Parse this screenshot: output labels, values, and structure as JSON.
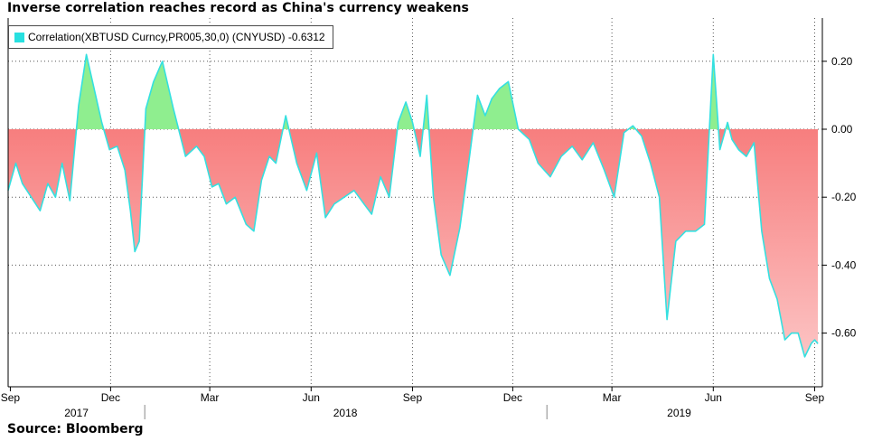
{
  "title": "Inverse correlation reaches record as China's currency weakens",
  "source": "Source: Bloomberg",
  "legend": {
    "label": "Correlation(XBTUSD Curncy,PR005,30,0) (CNYUSD) -0.6312",
    "swatch_color": "#27e0e0"
  },
  "colors": {
    "line": "#34e0e0",
    "positive_fill": "#8fee8f",
    "negative_fill_top": "#f77e7e",
    "negative_fill_bottom": "#fcc4c4",
    "grid": "#555555"
  },
  "chart_data": {
    "type": "area",
    "title": "Inverse correlation reaches record as China's currency weakens",
    "xlabel": "",
    "ylabel": "",
    "ylim": [
      -0.75,
      0.31
    ],
    "yticks": [
      0.2,
      0.0,
      -0.2,
      -0.4,
      -0.6
    ],
    "ytick_labels": [
      "0.20",
      "0.00",
      "-0.20",
      "-0.40",
      "-0.60"
    ],
    "x_month_ticks": [
      {
        "date": "2017-09-01",
        "label": "Sep"
      },
      {
        "date": "2017-12-01",
        "label": "Dec"
      },
      {
        "date": "2018-03-01",
        "label": "Mar"
      },
      {
        "date": "2018-06-01",
        "label": "Jun"
      },
      {
        "date": "2018-09-01",
        "label": "Sep"
      },
      {
        "date": "2018-12-01",
        "label": "Dec"
      },
      {
        "date": "2019-03-01",
        "label": "Mar"
      },
      {
        "date": "2019-06-01",
        "label": "Jun"
      },
      {
        "date": "2019-09-01",
        "label": "Sep"
      }
    ],
    "x_year_labels": [
      {
        "date": "2017-10-31",
        "label": "2017"
      },
      {
        "date": "2018-07-02",
        "label": "2018"
      },
      {
        "date": "2019-05-01",
        "label": "2019"
      }
    ],
    "x_year_dividers": [
      "2018-01-01",
      "2019-01-01"
    ],
    "grid": true,
    "legend_position": "top-left",
    "last_value": -0.6312,
    "series": [
      {
        "name": "Correlation(XBTUSD Curncy,PR005,30,0) (CNYUSD) -0.6312",
        "x": [
          "2017-08-30",
          "2017-09-06",
          "2017-09-12",
          "2017-09-20",
          "2017-09-28",
          "2017-10-05",
          "2017-10-12",
          "2017-10-18",
          "2017-10-25",
          "2017-11-02",
          "2017-11-09",
          "2017-11-16",
          "2017-11-23",
          "2017-11-30",
          "2017-12-07",
          "2017-12-14",
          "2017-12-19",
          "2017-12-23",
          "2017-12-27",
          "2018-01-02",
          "2018-01-09",
          "2018-01-17",
          "2018-01-27",
          "2018-02-07",
          "2018-02-17",
          "2018-02-24",
          "2018-03-03",
          "2018-03-09",
          "2018-03-16",
          "2018-03-24",
          "2018-04-03",
          "2018-04-10",
          "2018-04-17",
          "2018-04-24",
          "2018-04-30",
          "2018-05-09",
          "2018-05-19",
          "2018-05-28",
          "2018-06-06",
          "2018-06-14",
          "2018-06-22",
          "2018-07-01",
          "2018-07-10",
          "2018-07-19",
          "2018-07-26",
          "2018-08-03",
          "2018-08-11",
          "2018-08-19",
          "2018-08-26",
          "2018-09-01",
          "2018-09-08",
          "2018-09-14",
          "2018-09-20",
          "2018-09-27",
          "2018-10-05",
          "2018-10-14",
          "2018-10-22",
          "2018-10-30",
          "2018-11-06",
          "2018-11-12",
          "2018-11-19",
          "2018-11-27",
          "2018-12-06",
          "2018-12-16",
          "2018-12-24",
          "2019-01-04",
          "2019-01-14",
          "2019-01-24",
          "2019-02-02",
          "2019-02-12",
          "2019-02-22",
          "2019-03-03",
          "2019-03-12",
          "2019-03-20",
          "2019-03-28",
          "2019-04-05",
          "2019-04-13",
          "2019-04-20",
          "2019-04-28",
          "2019-05-07",
          "2019-05-16",
          "2019-05-24",
          "2019-06-01",
          "2019-06-07",
          "2019-06-14",
          "2019-06-18",
          "2019-06-24",
          "2019-07-01",
          "2019-07-08",
          "2019-07-15",
          "2019-07-22",
          "2019-07-29",
          "2019-08-05",
          "2019-08-11",
          "2019-08-17",
          "2019-08-23",
          "2019-08-29",
          "2019-09-01",
          "2019-09-04"
        ],
        "values": [
          -0.18,
          -0.1,
          -0.16,
          -0.2,
          -0.24,
          -0.16,
          -0.2,
          -0.1,
          -0.21,
          0.07,
          0.22,
          0.12,
          0.02,
          -0.06,
          -0.05,
          -0.12,
          -0.24,
          -0.36,
          -0.33,
          0.06,
          0.14,
          0.2,
          0.06,
          -0.08,
          -0.05,
          -0.08,
          -0.17,
          -0.16,
          -0.22,
          -0.2,
          -0.28,
          -0.3,
          -0.15,
          -0.08,
          -0.1,
          0.04,
          -0.1,
          -0.18,
          -0.07,
          -0.26,
          -0.22,
          -0.2,
          -0.18,
          -0.22,
          -0.25,
          -0.14,
          -0.2,
          0.02,
          0.08,
          0.02,
          -0.08,
          0.1,
          -0.2,
          -0.37,
          -0.43,
          -0.29,
          -0.1,
          0.1,
          0.04,
          0.09,
          0.12,
          0.14,
          0.0,
          -0.03,
          -0.1,
          -0.14,
          -0.08,
          -0.05,
          -0.09,
          -0.04,
          -0.12,
          -0.2,
          -0.01,
          0.01,
          -0.02,
          -0.1,
          -0.2,
          -0.56,
          -0.33,
          -0.3,
          -0.3,
          -0.28,
          0.22,
          -0.06,
          0.02,
          -0.03,
          -0.06,
          -0.08,
          -0.04,
          -0.3,
          -0.44,
          -0.5,
          -0.62,
          -0.6,
          -0.6,
          -0.67,
          -0.63,
          -0.62,
          -0.6312
        ]
      }
    ]
  }
}
